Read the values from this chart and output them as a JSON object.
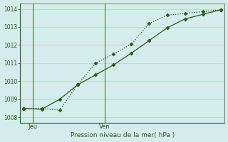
{
  "xlabel": "Pression niveau de la mer( hPa )",
  "bg_color": "#d4ecec",
  "grid_color": "#e8c8c8",
  "line_color": "#2d5a1b",
  "series1_x": [
    0,
    1,
    2,
    3,
    4,
    5,
    6,
    7,
    8,
    9,
    10,
    11
  ],
  "series1_y": [
    1008.5,
    1008.5,
    1008.4,
    1009.8,
    1011.0,
    1011.5,
    1012.05,
    1013.2,
    1013.65,
    1013.75,
    1013.85,
    1013.95
  ],
  "series2_x": [
    0,
    1,
    2,
    3,
    4,
    5,
    6,
    7,
    8,
    9,
    10,
    11
  ],
  "series2_y": [
    1008.5,
    1008.45,
    1009.0,
    1009.8,
    1010.35,
    1010.9,
    1011.55,
    1012.25,
    1012.95,
    1013.45,
    1013.7,
    1013.95
  ],
  "ylim": [
    1007.7,
    1014.3
  ],
  "yticks": [
    1008,
    1009,
    1010,
    1011,
    1012,
    1013,
    1014
  ],
  "xlim": [
    -0.2,
    11.2
  ],
  "vline_x1": 0.5,
  "vline_x2": 4.5,
  "vline_label1": "Jeu",
  "vline_label2": "Ven"
}
